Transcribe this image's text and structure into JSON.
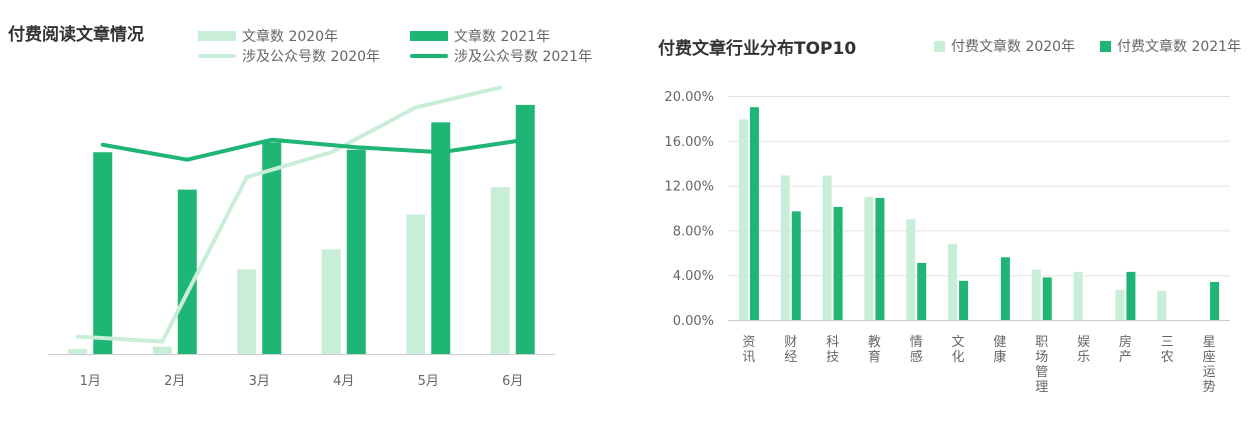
{
  "colors": {
    "c2020": "#c9eed8",
    "c2021": "#1fb574",
    "axis": "#cccccc",
    "grid": "#e3e3e3"
  },
  "left": {
    "title": "付费阅读文章情况",
    "legend": {
      "bar2020": "文章数 2020年",
      "bar2021": "文章数 2021年",
      "line2020": "涉及公众号数 2020年",
      "line2021": "涉及公众号数 2021年"
    }
  },
  "right": {
    "title": "付费文章行业分布TOP10",
    "legend": {
      "s2020": "付费文章数 2020年",
      "s2021": "付费文章数 2021年"
    }
  },
  "chart_data": [
    {
      "type": "bar",
      "title": "付费阅读文章情况",
      "categories": [
        "1月",
        "2月",
        "3月",
        "4月",
        "5月",
        "6月"
      ],
      "series": [
        {
          "name": "文章数 2020年",
          "kind": "bar",
          "values": [
            2,
            3,
            34,
            42,
            56,
            67
          ]
        },
        {
          "name": "文章数 2021年",
          "kind": "bar",
          "values": [
            81,
            66,
            85,
            82,
            93,
            100
          ]
        },
        {
          "name": "涉及公众号数 2020年",
          "kind": "line",
          "values": [
            7,
            5,
            71,
            81,
            99,
            107
          ]
        },
        {
          "name": "涉及公众号数 2021年",
          "kind": "line",
          "values": [
            84,
            78,
            86,
            83,
            81,
            86
          ]
        }
      ],
      "ylim": [
        0,
        110
      ],
      "axis_labels_shown": false,
      "legend": "top",
      "grid": false
    },
    {
      "type": "bar",
      "title": "付费文章行业分布TOP10",
      "categories": [
        "资讯",
        "财经",
        "科技",
        "教育",
        "情感",
        "文化",
        "健康",
        "职场管理",
        "娱乐",
        "房产",
        "三农",
        "星座运势"
      ],
      "series": [
        {
          "name": "付费文章数 2020年",
          "values": [
            17.9,
            12.9,
            12.9,
            11.0,
            9.0,
            6.8,
            0.0,
            4.5,
            4.3,
            2.7,
            2.6,
            0.0
          ]
        },
        {
          "name": "付费文章数 2021年",
          "values": [
            19.0,
            9.7,
            10.1,
            10.9,
            5.1,
            3.5,
            5.6,
            3.8,
            0.0,
            4.3,
            0.0,
            3.4
          ]
        }
      ],
      "yticks": [
        "0.00%",
        "4.00%",
        "8.00%",
        "12.00%",
        "16.00%",
        "20.00%"
      ],
      "ylim": [
        0,
        20
      ],
      "legend": "top-right",
      "grid": true
    }
  ]
}
